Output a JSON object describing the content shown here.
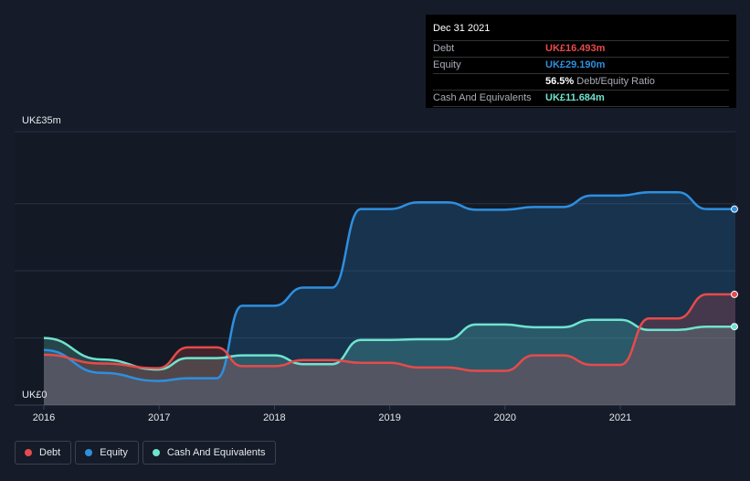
{
  "chart_data": {
    "type": "area",
    "y_top_label": "UK£35m",
    "y_bottom_label": "UK£0",
    "ylim": [
      0,
      35
    ],
    "x_ticks": [
      "2016",
      "2017",
      "2018",
      "2019",
      "2020",
      "2021"
    ],
    "grid": true,
    "legend_position": "bottom-left",
    "series": [
      {
        "name": "Debt",
        "color": "#e64b4b",
        "points": [
          [
            2016.0,
            7.5
          ],
          [
            2016.5,
            6.2
          ],
          [
            2016.99,
            5.5
          ],
          [
            2017.25,
            8.6
          ],
          [
            2017.5,
            8.6
          ],
          [
            2017.72,
            5.8
          ],
          [
            2018.0,
            5.8
          ],
          [
            2018.25,
            6.7
          ],
          [
            2018.5,
            6.7
          ],
          [
            2018.75,
            6.3
          ],
          [
            2019.0,
            6.3
          ],
          [
            2019.25,
            5.6
          ],
          [
            2019.5,
            5.6
          ],
          [
            2019.75,
            5.1
          ],
          [
            2020.0,
            5.1
          ],
          [
            2020.25,
            7.4
          ],
          [
            2020.5,
            7.4
          ],
          [
            2020.75,
            6.0
          ],
          [
            2021.0,
            6.0
          ],
          [
            2021.25,
            12.9
          ],
          [
            2021.5,
            12.9
          ],
          [
            2021.75,
            16.493
          ],
          [
            2022.0,
            16.493
          ]
        ]
      },
      {
        "name": "Equity",
        "color": "#2e8fdf",
        "points": [
          [
            2016.0,
            8.2
          ],
          [
            2016.5,
            4.8
          ],
          [
            2016.99,
            3.6
          ],
          [
            2017.25,
            4.0
          ],
          [
            2017.5,
            4.0
          ],
          [
            2017.72,
            14.8
          ],
          [
            2018.0,
            14.8
          ],
          [
            2018.25,
            17.5
          ],
          [
            2018.5,
            17.5
          ],
          [
            2018.75,
            29.2
          ],
          [
            2019.0,
            29.2
          ],
          [
            2019.25,
            30.2
          ],
          [
            2019.5,
            30.2
          ],
          [
            2019.75,
            29.1
          ],
          [
            2020.0,
            29.1
          ],
          [
            2020.25,
            29.5
          ],
          [
            2020.5,
            29.5
          ],
          [
            2020.75,
            31.2
          ],
          [
            2021.0,
            31.2
          ],
          [
            2021.25,
            31.7
          ],
          [
            2021.5,
            31.7
          ],
          [
            2021.75,
            29.19
          ],
          [
            2022.0,
            29.19
          ]
        ]
      },
      {
        "name": "Cash And Equivalents",
        "color": "#6fe3cf",
        "points": [
          [
            2016.0,
            10.0
          ],
          [
            2016.5,
            6.8
          ],
          [
            2016.99,
            5.3
          ],
          [
            2017.25,
            7.0
          ],
          [
            2017.5,
            7.0
          ],
          [
            2017.72,
            7.4
          ],
          [
            2018.0,
            7.4
          ],
          [
            2018.25,
            6.1
          ],
          [
            2018.5,
            6.1
          ],
          [
            2018.75,
            9.7
          ],
          [
            2019.0,
            9.7
          ],
          [
            2019.25,
            9.8
          ],
          [
            2019.5,
            9.8
          ],
          [
            2019.75,
            12.0
          ],
          [
            2020.0,
            12.0
          ],
          [
            2020.25,
            11.6
          ],
          [
            2020.5,
            11.6
          ],
          [
            2020.75,
            12.7
          ],
          [
            2021.0,
            12.7
          ],
          [
            2021.25,
            11.2
          ],
          [
            2021.5,
            11.2
          ],
          [
            2021.75,
            11.684
          ],
          [
            2022.0,
            11.684
          ]
        ]
      }
    ]
  },
  "tooltip": {
    "date": "Dec 31 2021",
    "rows": [
      {
        "label": "Debt",
        "value": "UK£16.493m",
        "color": "#e64b4b"
      },
      {
        "label": "Equity",
        "value": "UK£29.190m",
        "color": "#2e8fdf"
      },
      {
        "label": "",
        "value": "56.5%",
        "suffix": "Debt/Equity Ratio",
        "color": "#ffffff"
      },
      {
        "label": "Cash And Equivalents",
        "value": "UK£11.684m",
        "color": "#6fe3cf"
      }
    ]
  },
  "legend": [
    {
      "label": "Debt",
      "color": "#e64b4b"
    },
    {
      "label": "Equity",
      "color": "#2e8fdf"
    },
    {
      "label": "Cash And Equivalents",
      "color": "#6fe3cf"
    }
  ]
}
